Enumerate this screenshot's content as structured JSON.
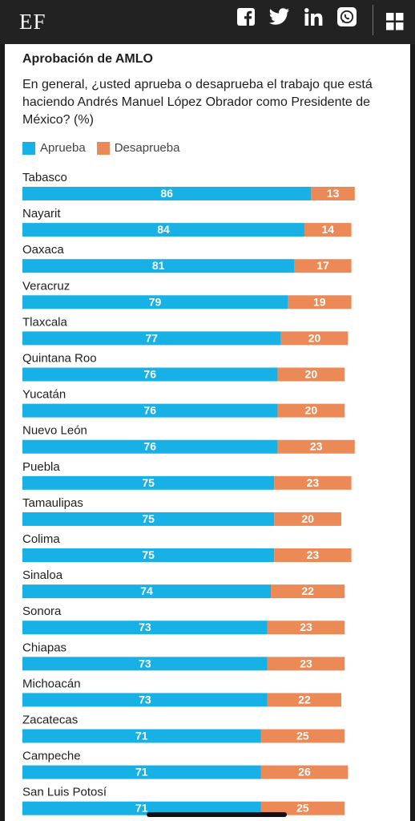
{
  "header": {
    "logo": "EF",
    "icons": [
      "facebook-icon",
      "twitter-icon",
      "linkedin-icon",
      "whatsapp-icon",
      "grid-menu-icon"
    ]
  },
  "colors": {
    "aprueba": "#17b1e5",
    "desaprueba": "#eb8a57"
  },
  "chart_data": {
    "type": "bar",
    "orientation": "horizontal",
    "stacked": true,
    "title": "Aprobación de AMLO",
    "subtitle": "En general, ¿usted aprueba o desaprueba el trabajo que está haciendo Andrés Manuel López Obrador como Presidente de México? (%)",
    "legend": [
      "Aprueba",
      "Desaprueba"
    ],
    "legend_position": "top-left",
    "categories": [
      "Tabasco",
      "Nayarit",
      "Oaxaca",
      "Veracruz",
      "Tlaxcala",
      "Quintana Roo",
      "Yucatán",
      "Nuevo León",
      "Puebla",
      "Tamaulipas",
      "Colima",
      "Sinaloa",
      "Sonora",
      "Chiapas",
      "Michoacán",
      "Zacatecas",
      "Campeche",
      "San Luis Potosí"
    ],
    "series": [
      {
        "name": "Aprueba",
        "values": [
          86,
          84,
          81,
          79,
          77,
          76,
          76,
          76,
          75,
          75,
          75,
          74,
          73,
          73,
          73,
          71,
          71,
          71
        ]
      },
      {
        "name": "Desaprueba",
        "values": [
          13,
          14,
          17,
          19,
          20,
          20,
          20,
          23,
          23,
          20,
          23,
          22,
          23,
          23,
          22,
          25,
          26,
          25
        ]
      }
    ],
    "xlim": [
      0,
      100
    ],
    "grid": false
  }
}
